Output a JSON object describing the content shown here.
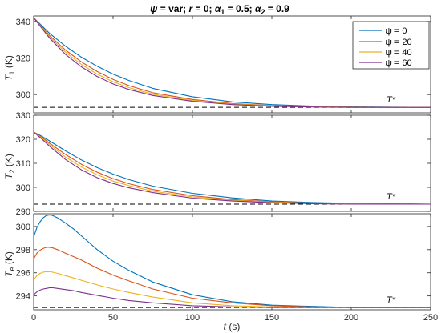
{
  "chart_data": [
    {
      "type": "line",
      "title": "ψ = var; r = 0; α1 = 0.5; α2 = 0.9",
      "title_parts": {
        "psi": "ψ",
        "eq_var": " = var; ",
        "r": "r",
        "eq_r": " = 0; ",
        "a1": "α",
        "a1_sub": "1",
        "eq_a1": " = 0.5; ",
        "a2": "α",
        "a2_sub": "2",
        "eq_a2": " = 0.9"
      },
      "ylabel": {
        "var": "T",
        "sub": "1",
        "unit": " (K)"
      },
      "xlim": [
        0,
        250
      ],
      "ylim": [
        290,
        343
      ],
      "yticks": [
        300,
        320,
        340
      ],
      "reference": {
        "label": "T*",
        "value": 293
      },
      "legend": {
        "location": "top-right",
        "entries": [
          "ψ = 0",
          "ψ = 20",
          "ψ = 40",
          "ψ = 60"
        ]
      },
      "series": [
        {
          "name": "ψ = 0",
          "color": "#0072BD",
          "x": [
            0,
            5,
            10,
            20,
            30,
            40,
            50,
            60,
            75,
            100,
            125,
            150,
            175,
            200,
            250
          ],
          "y": [
            342,
            337.8,
            333.5,
            326.5,
            320.5,
            315.5,
            311.2,
            307.7,
            303.4,
            298.8,
            296.0,
            294.5,
            293.7,
            293.3,
            293.0
          ]
        },
        {
          "name": "ψ = 20",
          "color": "#D95319",
          "x": [
            0,
            5,
            10,
            20,
            30,
            40,
            50,
            60,
            75,
            100,
            125,
            150,
            175,
            200,
            250
          ],
          "y": [
            342,
            337.2,
            332.3,
            324.4,
            317.9,
            312.6,
            308.3,
            304.9,
            301.0,
            297.3,
            295.1,
            294.0,
            293.4,
            293.1,
            293.0
          ]
        },
        {
          "name": "ψ = 40",
          "color": "#EDB120",
          "x": [
            0,
            5,
            10,
            20,
            30,
            40,
            50,
            60,
            75,
            100,
            125,
            150,
            175,
            200,
            250
          ],
          "y": [
            342,
            336.8,
            331.6,
            323.2,
            316.5,
            311.2,
            307.0,
            303.8,
            300.2,
            296.8,
            294.8,
            293.8,
            293.3,
            293.1,
            293.0
          ]
        },
        {
          "name": "ψ = 60",
          "color": "#7E2F8E",
          "x": [
            0,
            5,
            10,
            20,
            30,
            40,
            50,
            60,
            75,
            100,
            125,
            150,
            175,
            200,
            250
          ],
          "y": [
            342,
            336.4,
            330.9,
            322.0,
            315.2,
            309.9,
            305.8,
            302.8,
            299.5,
            296.3,
            294.5,
            293.6,
            293.2,
            293.0,
            293.0
          ]
        }
      ]
    },
    {
      "type": "line",
      "ylabel": {
        "var": "T",
        "sub": "2",
        "unit": " (K)"
      },
      "xlim": [
        0,
        250
      ],
      "ylim": [
        290,
        330
      ],
      "yticks": [
        290,
        300,
        310,
        320,
        330
      ],
      "reference": {
        "label": "T*",
        "value": 293
      },
      "series": [
        {
          "name": "ψ = 0",
          "color": "#0072BD",
          "x": [
            0,
            5,
            10,
            20,
            30,
            40,
            50,
            60,
            75,
            100,
            125,
            150,
            175,
            200,
            250
          ],
          "y": [
            323,
            321.3,
            319.3,
            315.2,
            311.4,
            308.2,
            305.5,
            303.2,
            300.5,
            297.5,
            295.6,
            294.3,
            293.7,
            293.3,
            293.0
          ]
        },
        {
          "name": "ψ = 20",
          "color": "#D95319",
          "x": [
            0,
            5,
            10,
            20,
            30,
            40,
            50,
            60,
            75,
            100,
            125,
            150,
            175,
            200,
            250
          ],
          "y": [
            323,
            320.9,
            318.4,
            313.7,
            309.6,
            306.3,
            303.6,
            301.5,
            299.1,
            296.5,
            294.9,
            294.0,
            293.4,
            293.1,
            293.0
          ]
        },
        {
          "name": "ψ = 40",
          "color": "#EDB120",
          "x": [
            0,
            5,
            10,
            20,
            30,
            40,
            50,
            60,
            75,
            100,
            125,
            150,
            175,
            200,
            250
          ],
          "y": [
            323,
            320.6,
            317.8,
            312.6,
            308.5,
            305.2,
            302.6,
            300.7,
            298.4,
            296.0,
            294.6,
            293.8,
            293.3,
            293.1,
            293.0
          ]
        },
        {
          "name": "ψ = 60",
          "color": "#7E2F8E",
          "x": [
            0,
            5,
            10,
            20,
            30,
            40,
            50,
            60,
            75,
            100,
            125,
            150,
            175,
            200,
            250
          ],
          "y": [
            323,
            320.2,
            317.1,
            311.6,
            307.3,
            304.0,
            301.6,
            299.8,
            297.8,
            295.5,
            294.3,
            293.6,
            293.2,
            293.0,
            293.0
          ]
        }
      ]
    },
    {
      "type": "line",
      "ylabel": {
        "var": "T",
        "sub": "e",
        "unit": " (K)"
      },
      "xlabel": {
        "var": "t",
        "unit": " (s)"
      },
      "xlim": [
        0,
        250
      ],
      "ylim": [
        292.8,
        301.1
      ],
      "xticks": [
        0,
        50,
        100,
        150,
        200,
        250
      ],
      "yticks": [
        294,
        296,
        298,
        300
      ],
      "reference": {
        "label": "T*",
        "value": 293
      },
      "series": [
        {
          "name": "ψ = 0",
          "color": "#0072BD",
          "x": [
            0,
            2,
            4,
            6,
            8,
            10,
            12,
            15,
            20,
            25,
            30,
            40,
            50,
            60,
            75,
            100,
            125,
            150,
            175,
            200,
            250
          ],
          "y": [
            299.1,
            299.9,
            300.4,
            300.75,
            300.95,
            301.0,
            300.95,
            300.75,
            300.3,
            299.8,
            299.2,
            298.0,
            297.0,
            296.2,
            295.2,
            294.1,
            293.5,
            293.2,
            293.1,
            293.0,
            293.0
          ]
        },
        {
          "name": "ψ = 20",
          "color": "#D95319",
          "x": [
            0,
            2,
            4,
            6,
            8,
            10,
            12,
            15,
            20,
            25,
            30,
            40,
            50,
            60,
            75,
            100,
            125,
            150,
            175,
            200,
            250
          ],
          "y": [
            297.2,
            297.7,
            297.95,
            298.1,
            298.2,
            298.2,
            298.15,
            298.0,
            297.7,
            297.4,
            297.1,
            296.4,
            295.8,
            295.3,
            294.6,
            293.8,
            293.4,
            293.15,
            293.05,
            293.0,
            293.0
          ]
        },
        {
          "name": "ψ = 40",
          "color": "#EDB120",
          "x": [
            0,
            2,
            4,
            6,
            8,
            10,
            12,
            15,
            20,
            25,
            30,
            40,
            50,
            60,
            75,
            100,
            125,
            150,
            175,
            200,
            250
          ],
          "y": [
            295.4,
            295.75,
            295.95,
            296.05,
            296.1,
            296.1,
            296.05,
            295.95,
            295.75,
            295.55,
            295.35,
            294.95,
            294.6,
            294.3,
            293.9,
            293.4,
            293.15,
            293.05,
            293.0,
            293.0,
            293.0
          ]
        },
        {
          "name": "ψ = 60",
          "color": "#7E2F8E",
          "x": [
            0,
            2,
            4,
            6,
            8,
            10,
            12,
            15,
            20,
            25,
            30,
            40,
            50,
            60,
            75,
            100,
            125,
            150,
            175,
            200,
            250
          ],
          "y": [
            294.1,
            294.35,
            294.5,
            294.6,
            294.65,
            294.7,
            294.7,
            294.65,
            294.55,
            294.45,
            294.3,
            294.05,
            293.8,
            293.6,
            293.4,
            293.15,
            293.05,
            293.0,
            293.0,
            293.0,
            293.0
          ]
        }
      ]
    }
  ]
}
